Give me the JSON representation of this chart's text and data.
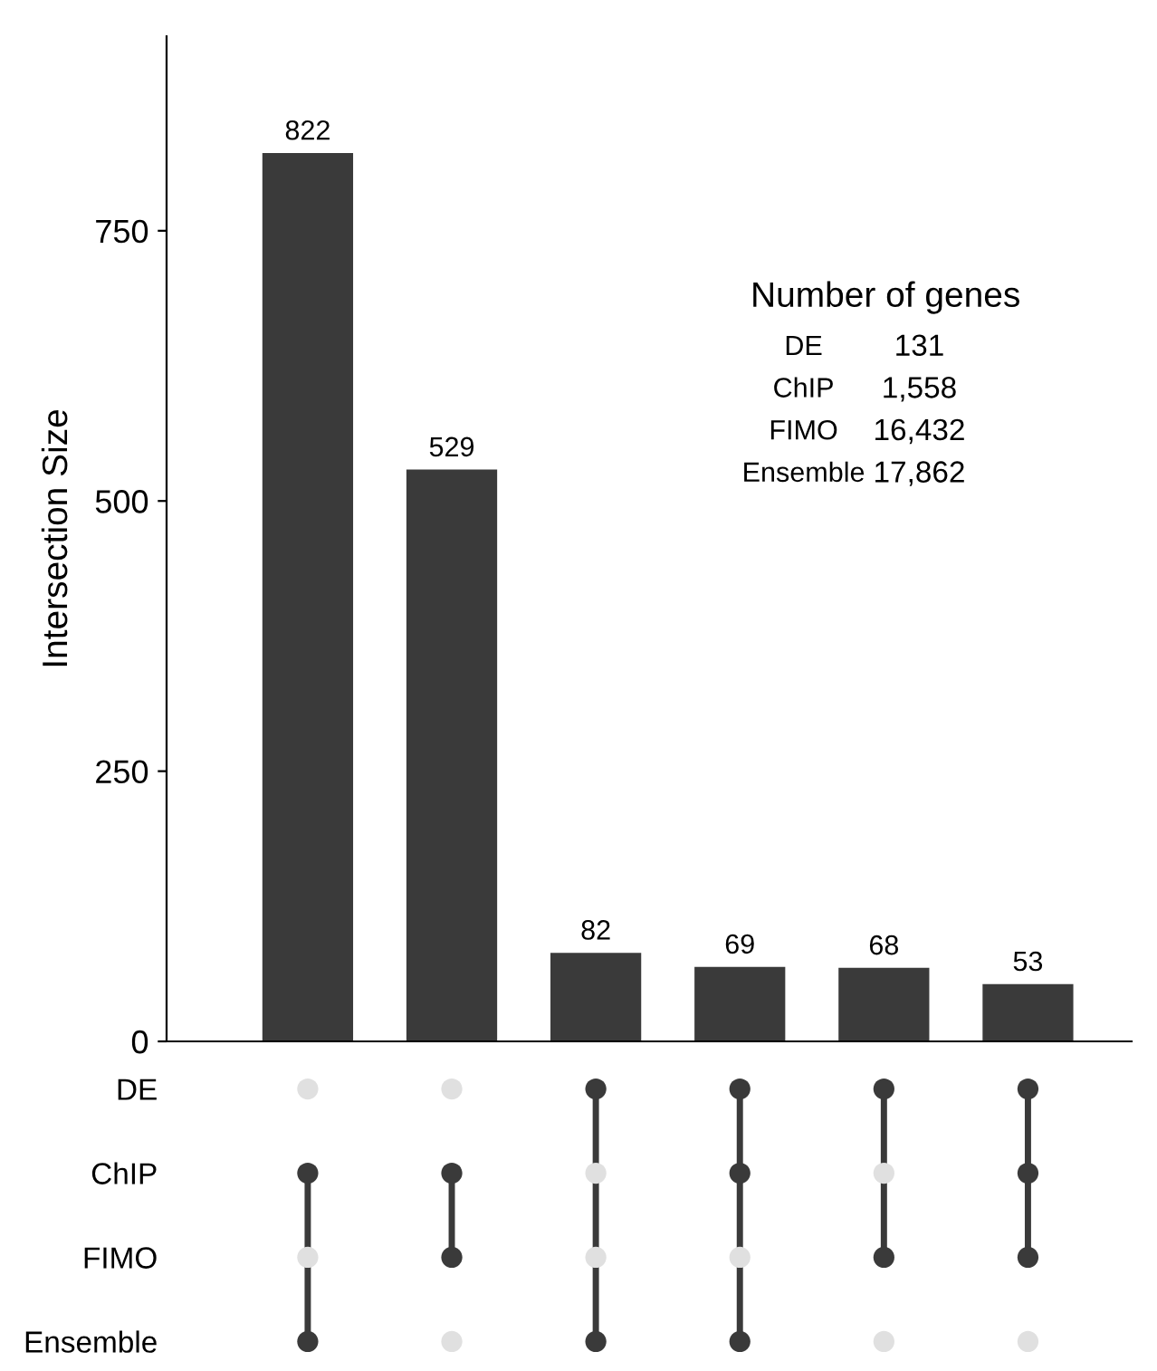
{
  "chart_data": [
    {
      "type": "bar",
      "categories": [
        null,
        null,
        null,
        null,
        null,
        null
      ],
      "values": [
        822,
        529,
        82,
        69,
        68,
        53
      ],
      "color": "#3a3a3a",
      "data_labels": true,
      "ylabel": "Intersection Size",
      "ylim": [
        0,
        930
      ],
      "yticks": [
        0,
        250,
        500,
        750
      ],
      "tick_labels": "y",
      "grid": false,
      "annotations": [
        "Number of genes",
        "DE",
        "131",
        "ChIP",
        "1,558",
        "FIMO",
        "16,432",
        "Ensemble",
        "17,862"
      ]
    },
    {
      "type": "other",
      "y_categories": [
        "DE",
        "ChIP",
        "FIMO",
        "Ensemble"
      ]
    }
  ]
}
